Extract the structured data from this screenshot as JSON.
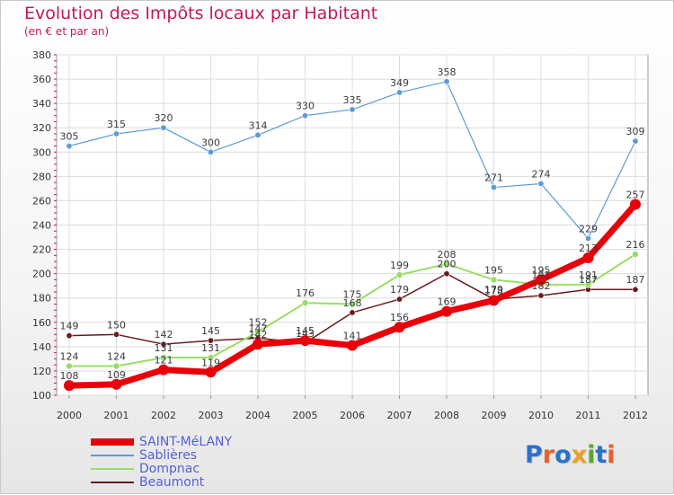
{
  "title": "Evolution des Impôts locaux par Habitant",
  "subtitle": "(en € et par an)",
  "logo_text": "Proxiti",
  "chart_data": {
    "type": "line",
    "title": "Evolution des Impôts locaux par Habitant",
    "subtitle": "(en € et par an)",
    "x": [
      "2000",
      "2001",
      "2002",
      "2003",
      "2004",
      "2005",
      "2006",
      "2007",
      "2008",
      "2009",
      "2010",
      "2011",
      "2012"
    ],
    "ylim": [
      100,
      380
    ],
    "yticks": [
      100,
      120,
      140,
      160,
      180,
      200,
      220,
      240,
      260,
      280,
      300,
      320,
      340,
      360,
      380
    ],
    "grid": true,
    "legend_position": "bottom-left",
    "series": [
      {
        "name": "SAINT-MéLANY",
        "color": "#e8000a",
        "values": [
          108,
          109,
          121,
          119,
          142,
          145,
          141,
          156,
          169,
          178,
          195,
          213,
          257
        ]
      },
      {
        "name": "Sablières",
        "color": "#5b9bd5",
        "values": [
          305,
          315,
          320,
          300,
          314,
          330,
          335,
          349,
          358,
          271,
          274,
          229,
          309
        ]
      },
      {
        "name": "Dompnac",
        "color": "#99dd66",
        "values": [
          124,
          124,
          131,
          131,
          152,
          176,
          175,
          199,
          208,
          195,
          191,
          191,
          216
        ]
      },
      {
        "name": "Beaumont",
        "color": "#6b1a1a",
        "values": [
          149,
          150,
          142,
          145,
          147,
          143,
          168,
          179,
          200,
          179,
          182,
          187,
          187
        ]
      }
    ]
  }
}
